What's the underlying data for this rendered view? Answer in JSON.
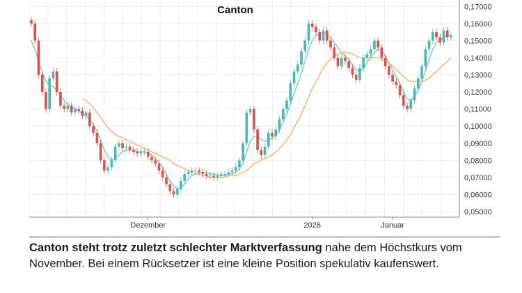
{
  "chart_data": {
    "type": "line",
    "title": "Canton",
    "xlabel": "",
    "ylabel": "",
    "ylim": [
      0.05,
      0.175
    ],
    "y_ticks": [
      "0,05000",
      "0,06000",
      "0,07000",
      "0,08000",
      "0,09000",
      "0,10000",
      "0,11000",
      "0,12000",
      "0,13000",
      "0,14000",
      "0,15000",
      "0,16000",
      "0,17000"
    ],
    "x_ticks": [
      {
        "label": "Dezember",
        "x": 32
      },
      {
        "label": "2026",
        "x": 77
      },
      {
        "label": "Januar",
        "x": 99
      }
    ],
    "x_range": [
      0,
      115
    ],
    "grid": true,
    "series": [
      {
        "kind": "candles",
        "color_up": "#4db8b0",
        "color_down": "#d9534f",
        "close": [
          0.16,
          0.15,
          0.13,
          0.12,
          0.11,
          0.128,
          0.132,
          0.12,
          0.112,
          0.11,
          0.112,
          0.108,
          0.11,
          0.109,
          0.106,
          0.108,
          0.1,
          0.096,
          0.09,
          0.08,
          0.074,
          0.076,
          0.08,
          0.088,
          0.09,
          0.087,
          0.088,
          0.086,
          0.085,
          0.084,
          0.085,
          0.085,
          0.082,
          0.08,
          0.078,
          0.074,
          0.07,
          0.066,
          0.062,
          0.06,
          0.063,
          0.068,
          0.072,
          0.073,
          0.074,
          0.074,
          0.073,
          0.072,
          0.071,
          0.071,
          0.07,
          0.071,
          0.072,
          0.072,
          0.073,
          0.074,
          0.076,
          0.08,
          0.09,
          0.108,
          0.11,
          0.098,
          0.086,
          0.083,
          0.088,
          0.096,
          0.094,
          0.098,
          0.104,
          0.11,
          0.115,
          0.125,
          0.132,
          0.136,
          0.144,
          0.15,
          0.16,
          0.158,
          0.155,
          0.15,
          0.156,
          0.15,
          0.146,
          0.14,
          0.135,
          0.14,
          0.138,
          0.134,
          0.13,
          0.127,
          0.134,
          0.14,
          0.142,
          0.145,
          0.15,
          0.146,
          0.14,
          0.135,
          0.13,
          0.126,
          0.124,
          0.118,
          0.112,
          0.11,
          0.115,
          0.122,
          0.128,
          0.135,
          0.145,
          0.15,
          0.155,
          0.152,
          0.149,
          0.156,
          0.152,
          0.153
        ],
        "open": [
          0.162,
          0.16,
          0.15,
          0.13,
          0.12,
          0.11,
          0.128,
          0.132,
          0.12,
          0.112,
          0.11,
          0.112,
          0.108,
          0.11,
          0.109,
          0.106,
          0.108,
          0.1,
          0.096,
          0.09,
          0.08,
          0.074,
          0.076,
          0.08,
          0.088,
          0.09,
          0.087,
          0.088,
          0.086,
          0.085,
          0.084,
          0.085,
          0.085,
          0.082,
          0.08,
          0.078,
          0.074,
          0.07,
          0.066,
          0.062,
          0.06,
          0.063,
          0.068,
          0.072,
          0.073,
          0.074,
          0.074,
          0.073,
          0.072,
          0.071,
          0.071,
          0.07,
          0.071,
          0.072,
          0.072,
          0.073,
          0.074,
          0.076,
          0.08,
          0.09,
          0.108,
          0.11,
          0.098,
          0.086,
          0.083,
          0.088,
          0.096,
          0.094,
          0.098,
          0.104,
          0.11,
          0.115,
          0.125,
          0.132,
          0.136,
          0.144,
          0.15,
          0.16,
          0.158,
          0.155,
          0.15,
          0.156,
          0.15,
          0.146,
          0.14,
          0.135,
          0.14,
          0.138,
          0.134,
          0.13,
          0.127,
          0.134,
          0.14,
          0.142,
          0.145,
          0.15,
          0.146,
          0.14,
          0.135,
          0.13,
          0.126,
          0.124,
          0.118,
          0.112,
          0.11,
          0.115,
          0.122,
          0.128,
          0.135,
          0.145,
          0.15,
          0.155,
          0.152,
          0.149,
          0.156,
          0.152
        ]
      },
      {
        "kind": "line",
        "color": "#7fcfcb",
        "values": [
          0.15,
          0.145,
          0.138,
          0.132,
          0.126,
          0.124,
          0.123,
          0.121,
          0.118,
          0.115,
          0.113,
          0.111,
          0.11,
          0.109,
          0.107,
          0.106,
          0.104,
          0.101,
          0.097,
          0.092,
          0.086,
          0.082,
          0.08,
          0.081,
          0.083,
          0.085,
          0.086,
          0.086,
          0.086,
          0.085,
          0.085,
          0.085,
          0.084,
          0.083,
          0.081,
          0.079,
          0.076,
          0.072,
          0.068,
          0.065,
          0.063,
          0.064,
          0.066,
          0.069,
          0.071,
          0.072,
          0.073,
          0.073,
          0.073,
          0.072,
          0.072,
          0.071,
          0.071,
          0.071,
          0.072,
          0.072,
          0.073,
          0.075,
          0.078,
          0.085,
          0.091,
          0.094,
          0.094,
          0.092,
          0.091,
          0.092,
          0.093,
          0.095,
          0.098,
          0.102,
          0.107,
          0.113,
          0.119,
          0.125,
          0.131,
          0.138,
          0.145,
          0.15,
          0.153,
          0.154,
          0.155,
          0.154,
          0.152,
          0.149,
          0.146,
          0.143,
          0.141,
          0.139,
          0.136,
          0.133,
          0.132,
          0.134,
          0.137,
          0.14,
          0.143,
          0.145,
          0.144,
          0.141,
          0.137,
          0.133,
          0.129,
          0.125,
          0.12,
          0.116,
          0.115,
          0.117,
          0.121,
          0.126,
          0.132,
          0.139,
          0.145,
          0.149,
          0.15,
          0.152,
          0.153,
          0.153
        ]
      },
      {
        "kind": "line",
        "color": "#f5b97c",
        "values": [
          null,
          null,
          null,
          null,
          null,
          null,
          null,
          null,
          null,
          null,
          null,
          null,
          null,
          null,
          0.116,
          0.115,
          0.113,
          0.111,
          0.108,
          0.105,
          0.102,
          0.099,
          0.097,
          0.095,
          0.094,
          0.093,
          0.092,
          0.091,
          0.09,
          0.089,
          0.088,
          0.087,
          0.086,
          0.085,
          0.084,
          0.083,
          0.082,
          0.081,
          0.08,
          0.078,
          0.077,
          0.076,
          0.075,
          0.074,
          0.073,
          0.072,
          0.072,
          0.071,
          0.071,
          0.07,
          0.07,
          0.07,
          0.07,
          0.07,
          0.071,
          0.071,
          0.071,
          0.072,
          0.073,
          0.074,
          0.076,
          0.078,
          0.079,
          0.08,
          0.081,
          0.082,
          0.083,
          0.085,
          0.087,
          0.089,
          0.092,
          0.095,
          0.099,
          0.103,
          0.107,
          0.112,
          0.117,
          0.122,
          0.126,
          0.13,
          0.134,
          0.137,
          0.139,
          0.141,
          0.142,
          0.143,
          0.143,
          0.143,
          0.142,
          0.141,
          0.14,
          0.14,
          0.14,
          0.14,
          0.14,
          0.14,
          0.139,
          0.138,
          0.137,
          0.135,
          0.133,
          0.131,
          0.129,
          0.127,
          0.126,
          0.126,
          0.126,
          0.126,
          0.127,
          0.128,
          0.13,
          0.132,
          0.134,
          0.136,
          0.138,
          0.14
        ]
      }
    ]
  },
  "caption": {
    "bold": "Canton steht trotz zuletzt schlechter Marktverfassung",
    "rest": " nahe dem Höchstkurs vom November. Bei einem Rücksetzer ist eine kleine Position spekulativ kaufenswert."
  }
}
